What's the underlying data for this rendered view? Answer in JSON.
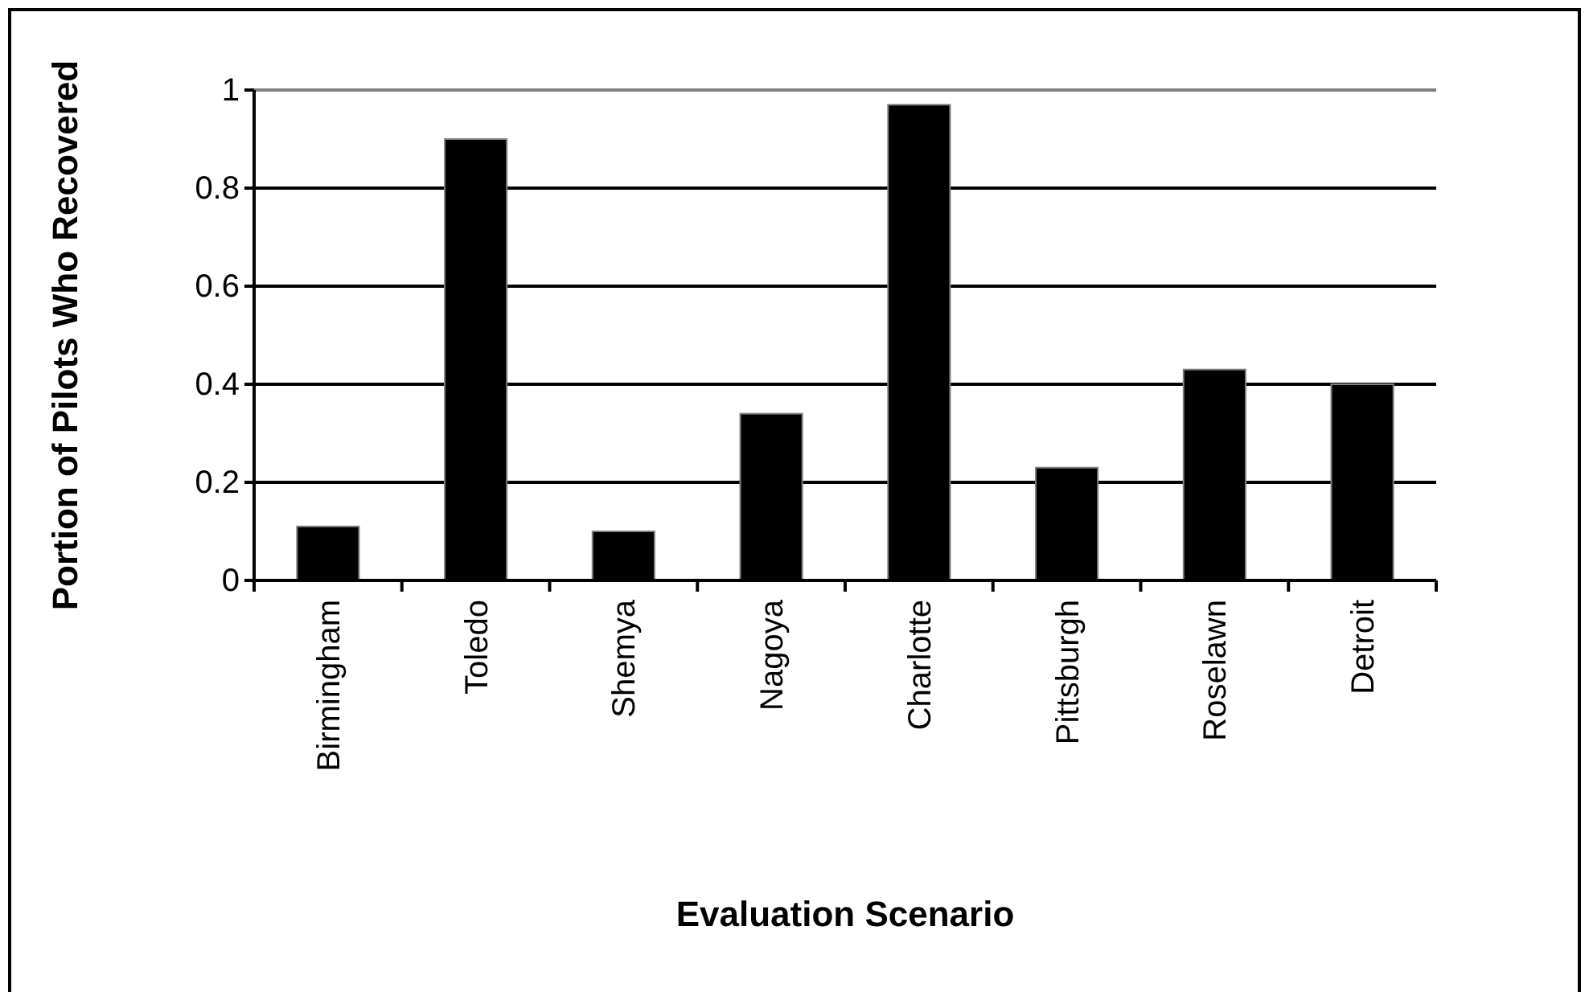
{
  "chart_data": {
    "type": "bar",
    "xlabel": "Evaluation Scenario",
    "ylabel": "Portion of Pilots Who Recovered",
    "categories": [
      "Birmingham",
      "Toledo",
      "Shemya",
      "Nagoya",
      "Charlotte",
      "Pittsburgh",
      "Roselawn",
      "Detroit"
    ],
    "values": [
      0.11,
      0.9,
      0.1,
      0.34,
      0.97,
      0.23,
      0.43,
      0.4
    ],
    "color": "#000000",
    "ylim": [
      0,
      1
    ],
    "yticks": [
      0,
      0.2,
      0.4,
      0.6,
      0.8,
      1
    ],
    "grid": "y"
  }
}
